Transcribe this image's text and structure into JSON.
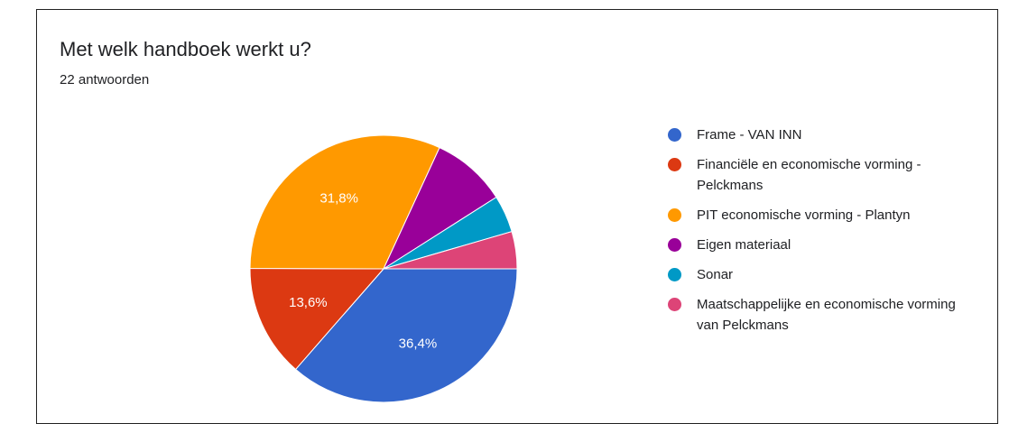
{
  "chart_data": {
    "type": "pie",
    "title": "Met welk handboek werkt u?",
    "subtitle": "22 antwoorden",
    "categories": [
      "Frame - VAN INN",
      "Financiële en economische vorming - Pelckmans",
      "PIT economische vorming - Plantyn",
      "Eigen materiaal",
      "Sonar",
      "Maatschappelijke en economische vorming van Pelckmans"
    ],
    "values": [
      36.4,
      13.6,
      31.8,
      9.1,
      4.5,
      4.5
    ],
    "value_labels": [
      "36,4%",
      "13,6%",
      "31,8%",
      null,
      null,
      null
    ],
    "colors": [
      "#3366cc",
      "#dc3912",
      "#ff9900",
      "#990099",
      "#0099c6",
      "#dd4477"
    ],
    "legend": "right"
  }
}
